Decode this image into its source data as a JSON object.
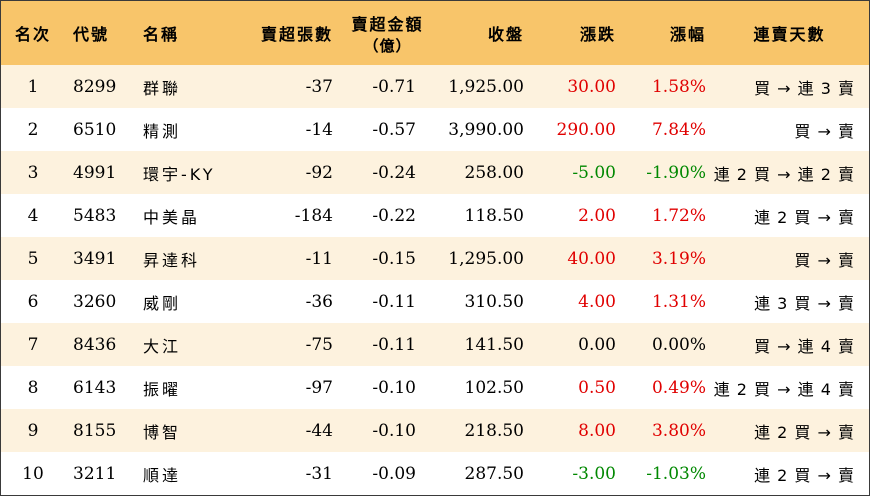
{
  "headers": {
    "rank": "名次",
    "code": "代號",
    "name": "名稱",
    "sell_sheets": "賣超張數",
    "sell_amount": "賣超金額",
    "sell_amount_unit": "（億）",
    "close": "收盤",
    "change": "漲跌",
    "pct": "漲幅",
    "streak": "連賣天數"
  },
  "colors": {
    "header_bg": "#f8c56a",
    "stripe_bg": "#fdf2de",
    "up": "#e00000",
    "down": "#008800"
  },
  "rows": [
    {
      "rank": "1",
      "code": "8299",
      "name": "群聯",
      "sheets": "-37",
      "amount": "-0.71",
      "close": "1,925.00",
      "change": "30.00",
      "pct": "1.58%",
      "dir": "up",
      "streak": "買 → 連 3 賣"
    },
    {
      "rank": "2",
      "code": "6510",
      "name": "精測",
      "sheets": "-14",
      "amount": "-0.57",
      "close": "3,990.00",
      "change": "290.00",
      "pct": "7.84%",
      "dir": "up",
      "streak": "買 → 賣"
    },
    {
      "rank": "3",
      "code": "4991",
      "name": "環宇-KY",
      "sheets": "-92",
      "amount": "-0.24",
      "close": "258.00",
      "change": "-5.00",
      "pct": "-1.90%",
      "dir": "down",
      "streak": "連 2 買 → 連 2 賣"
    },
    {
      "rank": "4",
      "code": "5483",
      "name": "中美晶",
      "sheets": "-184",
      "amount": "-0.22",
      "close": "118.50",
      "change": "2.00",
      "pct": "1.72%",
      "dir": "up",
      "streak": "連 2 買 → 賣"
    },
    {
      "rank": "5",
      "code": "3491",
      "name": "昇達科",
      "sheets": "-11",
      "amount": "-0.15",
      "close": "1,295.00",
      "change": "40.00",
      "pct": "3.19%",
      "dir": "up",
      "streak": "買 → 賣"
    },
    {
      "rank": "6",
      "code": "3260",
      "name": "威剛",
      "sheets": "-36",
      "amount": "-0.11",
      "close": "310.50",
      "change": "4.00",
      "pct": "1.31%",
      "dir": "up",
      "streak": "連 3 買 → 賣"
    },
    {
      "rank": "7",
      "code": "8436",
      "name": "大江",
      "sheets": "-75",
      "amount": "-0.11",
      "close": "141.50",
      "change": "0.00",
      "pct": "0.00%",
      "dir": "flat",
      "streak": "買 → 連 4 賣"
    },
    {
      "rank": "8",
      "code": "6143",
      "name": "振曜",
      "sheets": "-97",
      "amount": "-0.10",
      "close": "102.50",
      "change": "0.50",
      "pct": "0.49%",
      "dir": "up",
      "streak": "連 2 買 → 連 4 賣"
    },
    {
      "rank": "9",
      "code": "8155",
      "name": "博智",
      "sheets": "-44",
      "amount": "-0.10",
      "close": "218.50",
      "change": "8.00",
      "pct": "3.80%",
      "dir": "up",
      "streak": "連 2 買 → 賣"
    },
    {
      "rank": "10",
      "code": "3211",
      "name": "順達",
      "sheets": "-31",
      "amount": "-0.09",
      "close": "287.50",
      "change": "-3.00",
      "pct": "-1.03%",
      "dir": "down",
      "streak": "連 2 買 → 賣"
    }
  ]
}
